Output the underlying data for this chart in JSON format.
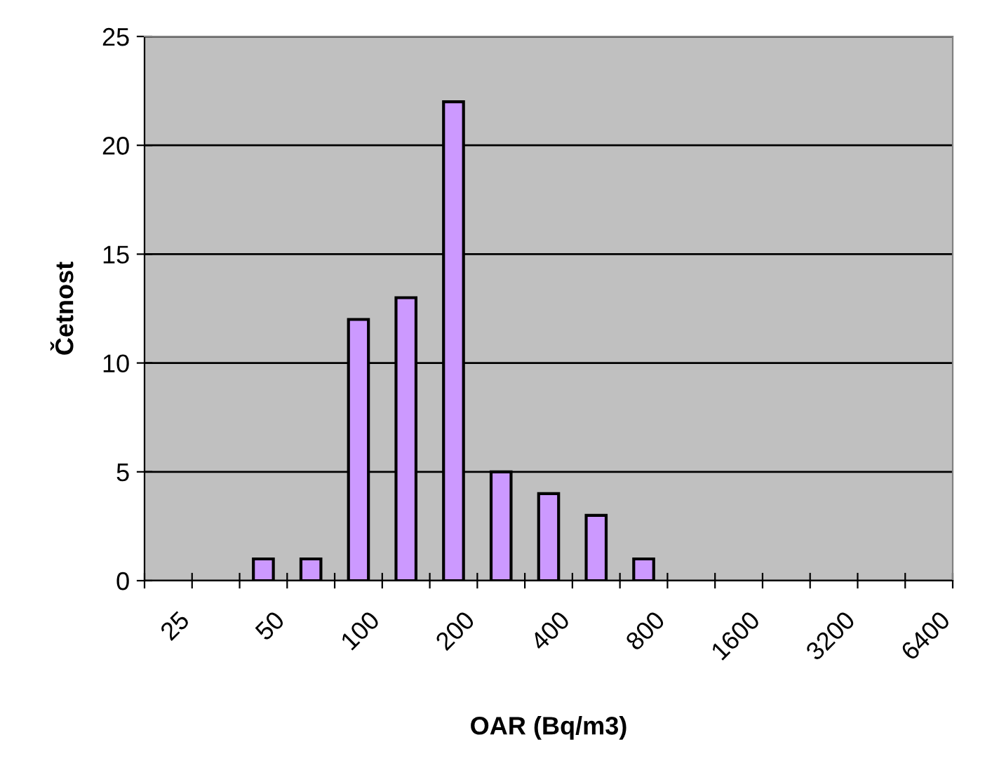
{
  "chart_data": {
    "type": "bar",
    "xlabel": "OAR (Bq/m3)",
    "ylabel": "Četnost",
    "categories": [
      "25",
      null,
      "50",
      null,
      "100",
      null,
      "200",
      null,
      "400",
      null,
      "800",
      null,
      "1600",
      null,
      "3200",
      null,
      "6400"
    ],
    "values": [
      null,
      null,
      1,
      1,
      12,
      13,
      22,
      5,
      4,
      3,
      1,
      null,
      null,
      null,
      null,
      null,
      null
    ],
    "color": "#cc99ff",
    "ylim": [
      0,
      25
    ],
    "yticks": [
      0,
      5,
      10,
      15,
      20,
      25
    ],
    "grid": "y",
    "legend": false
  }
}
